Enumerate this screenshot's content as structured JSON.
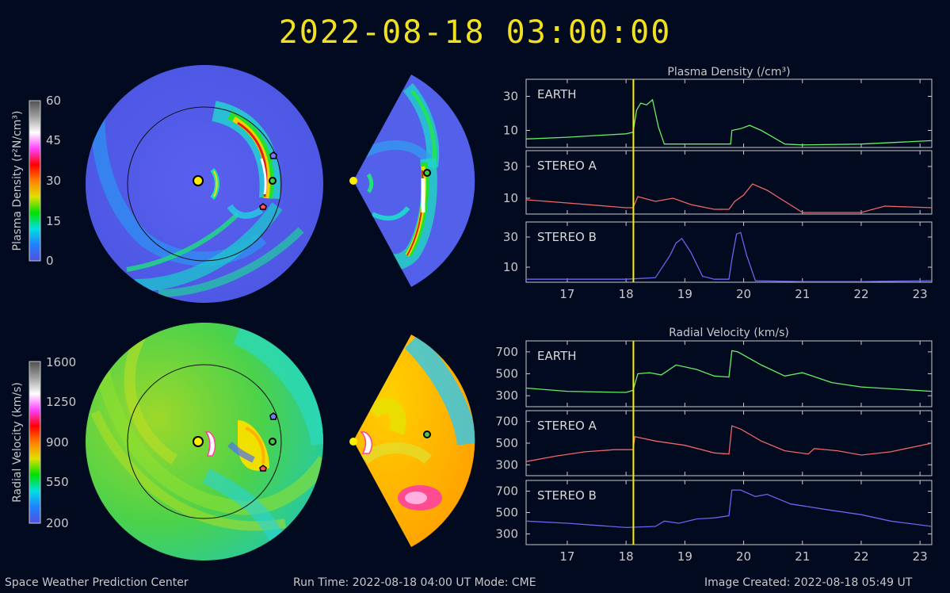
{
  "title": "2022-08-18 03:00:00",
  "footer": {
    "left": "Space Weather Prediction Center",
    "middle": "Run Time: 2022-08-18 04:00 UT   Mode: CME",
    "right": "Image Created: 2022-08-18 05:49 UT"
  },
  "colorbars": [
    {
      "label": "Plasma Density (r²N/cm³)",
      "ticks": [
        "60",
        "45",
        "30",
        "15",
        "0"
      ],
      "colors": [
        "#5050e0",
        "#2080ff",
        "#00e0e0",
        "#00e000",
        "#e0e000",
        "#ff8000",
        "#ff0000",
        "#ff40ff",
        "#ffffff",
        "#a0a0a0",
        "#505050"
      ]
    },
    {
      "label": "Radial Velocity (km/s)",
      "ticks": [
        "1600",
        "1250",
        "900",
        "550",
        "200"
      ],
      "colors": [
        "#5050e0",
        "#2080ff",
        "#00e0e0",
        "#00e000",
        "#e0e000",
        "#ff8000",
        "#ff0000",
        "#ff40ff",
        "#ffffff",
        "#a0a0a0",
        "#505050"
      ]
    }
  ],
  "markers": {
    "sun": "#ffee00",
    "earth": "#44cc44",
    "stereo_a": "#ff5555",
    "stereo_b": "#7777ff"
  },
  "chart_data": [
    {
      "type": "line",
      "title": "Plasma Density (/cm³)",
      "xlim": [
        16.3,
        23.2
      ],
      "x_ticks": [
        17,
        18,
        19,
        20,
        21,
        22,
        23
      ],
      "current_time": 18.125,
      "panels": [
        {
          "name": "EARTH",
          "color": "#66ee66",
          "ylim": [
            0,
            40
          ],
          "y_ticks": [
            10,
            30
          ],
          "x": [
            16.3,
            17.0,
            17.5,
            18.0,
            18.12,
            18.18,
            18.25,
            18.35,
            18.45,
            18.55,
            18.65,
            19.0,
            19.5,
            19.78,
            19.8,
            19.95,
            20.1,
            20.3,
            20.5,
            20.7,
            21.0,
            22.0,
            23.2
          ],
          "y": [
            5,
            6,
            7,
            8,
            9,
            22,
            26,
            25,
            28,
            12,
            2,
            2,
            2,
            2,
            10,
            11,
            13,
            10,
            6,
            2,
            1.5,
            2,
            4
          ]
        },
        {
          "name": "STEREO A",
          "color": "#ee6666",
          "ylim": [
            0,
            40
          ],
          "y_ticks": [
            10,
            30
          ],
          "x": [
            16.3,
            17.0,
            18.0,
            18.12,
            18.2,
            18.5,
            18.8,
            19.1,
            19.5,
            19.75,
            19.85,
            20.0,
            20.15,
            20.4,
            20.7,
            21.0,
            21.2,
            22.0,
            22.4,
            23.2
          ],
          "y": [
            9,
            7,
            4,
            4,
            11,
            8,
            10,
            6,
            3,
            3,
            8,
            12,
            19,
            15,
            8,
            1,
            1,
            1,
            5,
            4
          ]
        },
        {
          "name": "STEREO B",
          "color": "#6666ee",
          "ylim": [
            0,
            40
          ],
          "y_ticks": [
            10,
            30
          ],
          "x": [
            16.3,
            17.0,
            18.0,
            18.5,
            18.65,
            18.75,
            18.85,
            18.95,
            19.1,
            19.3,
            19.5,
            19.75,
            19.8,
            19.88,
            19.95,
            20.05,
            20.2,
            21.0,
            22.0,
            23.2
          ],
          "y": [
            2,
            2,
            2,
            3,
            12,
            18,
            26,
            29,
            20,
            4,
            2,
            2,
            15,
            32,
            33,
            18,
            1,
            0.5,
            0.5,
            1
          ]
        }
      ]
    },
    {
      "type": "line",
      "title": "Radial Velocity (km/s)",
      "xlim": [
        16.3,
        23.2
      ],
      "x_ticks": [
        17,
        18,
        19,
        20,
        21,
        22,
        23
      ],
      "current_time": 18.125,
      "panels": [
        {
          "name": "EARTH",
          "color": "#66ee66",
          "ylim": [
            200,
            800
          ],
          "y_ticks": [
            300,
            500,
            700
          ],
          "x": [
            16.3,
            17.0,
            18.0,
            18.12,
            18.2,
            18.4,
            18.6,
            18.85,
            19.2,
            19.5,
            19.75,
            19.8,
            19.9,
            20.3,
            20.7,
            21.0,
            21.5,
            22.0,
            23.2
          ],
          "y": [
            370,
            340,
            330,
            350,
            500,
            510,
            490,
            580,
            540,
            480,
            470,
            710,
            700,
            580,
            480,
            510,
            420,
            380,
            340
          ]
        },
        {
          "name": "STEREO A",
          "color": "#ee6666",
          "ylim": [
            200,
            800
          ],
          "y_ticks": [
            300,
            500,
            700
          ],
          "x": [
            16.3,
            16.8,
            17.3,
            17.8,
            18.12,
            18.15,
            18.5,
            19.0,
            19.5,
            19.75,
            19.8,
            19.95,
            20.3,
            20.7,
            21.1,
            21.2,
            21.6,
            22.0,
            22.5,
            23.2
          ],
          "y": [
            330,
            380,
            420,
            440,
            440,
            560,
            520,
            480,
            410,
            400,
            660,
            630,
            520,
            430,
            400,
            450,
            430,
            390,
            420,
            500
          ]
        },
        {
          "name": "STEREO B",
          "color": "#6666ee",
          "ylim": [
            200,
            800
          ],
          "y_ticks": [
            300,
            500,
            700
          ],
          "x": [
            16.3,
            17.0,
            17.5,
            18.0,
            18.5,
            18.65,
            18.9,
            19.2,
            19.5,
            19.75,
            19.8,
            19.95,
            20.2,
            20.4,
            20.8,
            21.5,
            22.0,
            22.5,
            23.2
          ],
          "y": [
            420,
            400,
            380,
            360,
            370,
            420,
            400,
            440,
            450,
            470,
            710,
            710,
            650,
            670,
            580,
            520,
            480,
            420,
            370
          ]
        }
      ]
    }
  ]
}
